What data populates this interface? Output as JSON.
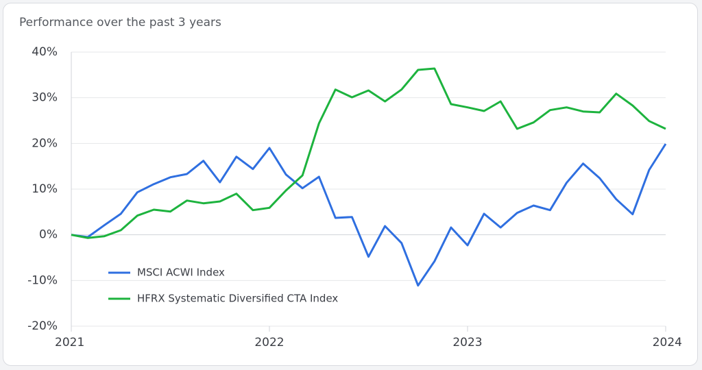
{
  "chart_data": {
    "type": "line",
    "title": "Performance over the past 3 years",
    "x": [
      2021,
      2021.0833,
      2021.1667,
      2021.25,
      2021.3333,
      2021.4167,
      2021.5,
      2021.5833,
      2021.6667,
      2021.75,
      2021.8333,
      2021.9167,
      2022,
      2022.0833,
      2022.1667,
      2022.25,
      2022.3333,
      2022.4167,
      2022.5,
      2022.5833,
      2022.6667,
      2022.75,
      2022.8333,
      2022.9167,
      2023,
      2023.0833,
      2023.1667,
      2023.25,
      2023.3333,
      2023.4167,
      2023.5,
      2023.5833,
      2023.6667,
      2023.75,
      2023.8333,
      2023.9167,
      2024
    ],
    "series": [
      {
        "name": "MSCI ACWI Index",
        "color": "#2f6fe0",
        "values": [
          0,
          -0.5,
          2.1,
          4.6,
          9.3,
          11.1,
          12.6,
          13.3,
          16.2,
          11.5,
          17.1,
          14.4,
          19.0,
          13.2,
          10.2,
          12.7,
          3.7,
          3.9,
          -4.8,
          1.9,
          -1.8,
          -11.1,
          -5.8,
          1.6,
          -2.3,
          4.6,
          1.6,
          4.8,
          6.4,
          5.4,
          11.4,
          15.6,
          12.4,
          7.8,
          4.5,
          14.2,
          19.9
        ]
      },
      {
        "name": "HFRX Systematic Diversified CTA Index",
        "color": "#1db33e",
        "values": [
          0,
          -0.7,
          -0.3,
          1.0,
          4.2,
          5.5,
          5.1,
          7.5,
          6.9,
          7.3,
          9.0,
          5.4,
          5.9,
          9.7,
          13.0,
          24.4,
          31.8,
          30.1,
          31.6,
          29.2,
          31.8,
          36.1,
          36.4,
          28.6,
          27.9,
          27.1,
          29.2,
          23.2,
          24.6,
          27.3,
          27.9,
          27.0,
          26.8,
          30.9,
          28.3,
          24.9,
          23.2
        ]
      }
    ],
    "xlim": [
      2021,
      2024
    ],
    "xticks": [
      2021,
      2022,
      2023,
      2024
    ],
    "ylim": [
      -20,
      40
    ],
    "yticks": [
      {
        "value": -20,
        "label": "-20%"
      },
      {
        "value": -10,
        "label": "-10%"
      },
      {
        "value": 0,
        "label": "0%"
      },
      {
        "value": 10,
        "label": "10%"
      },
      {
        "value": 20,
        "label": "20%"
      },
      {
        "value": 30,
        "label": "30%"
      },
      {
        "value": 40,
        "label": "40%"
      }
    ],
    "grid": true,
    "legend": "lower-left"
  }
}
